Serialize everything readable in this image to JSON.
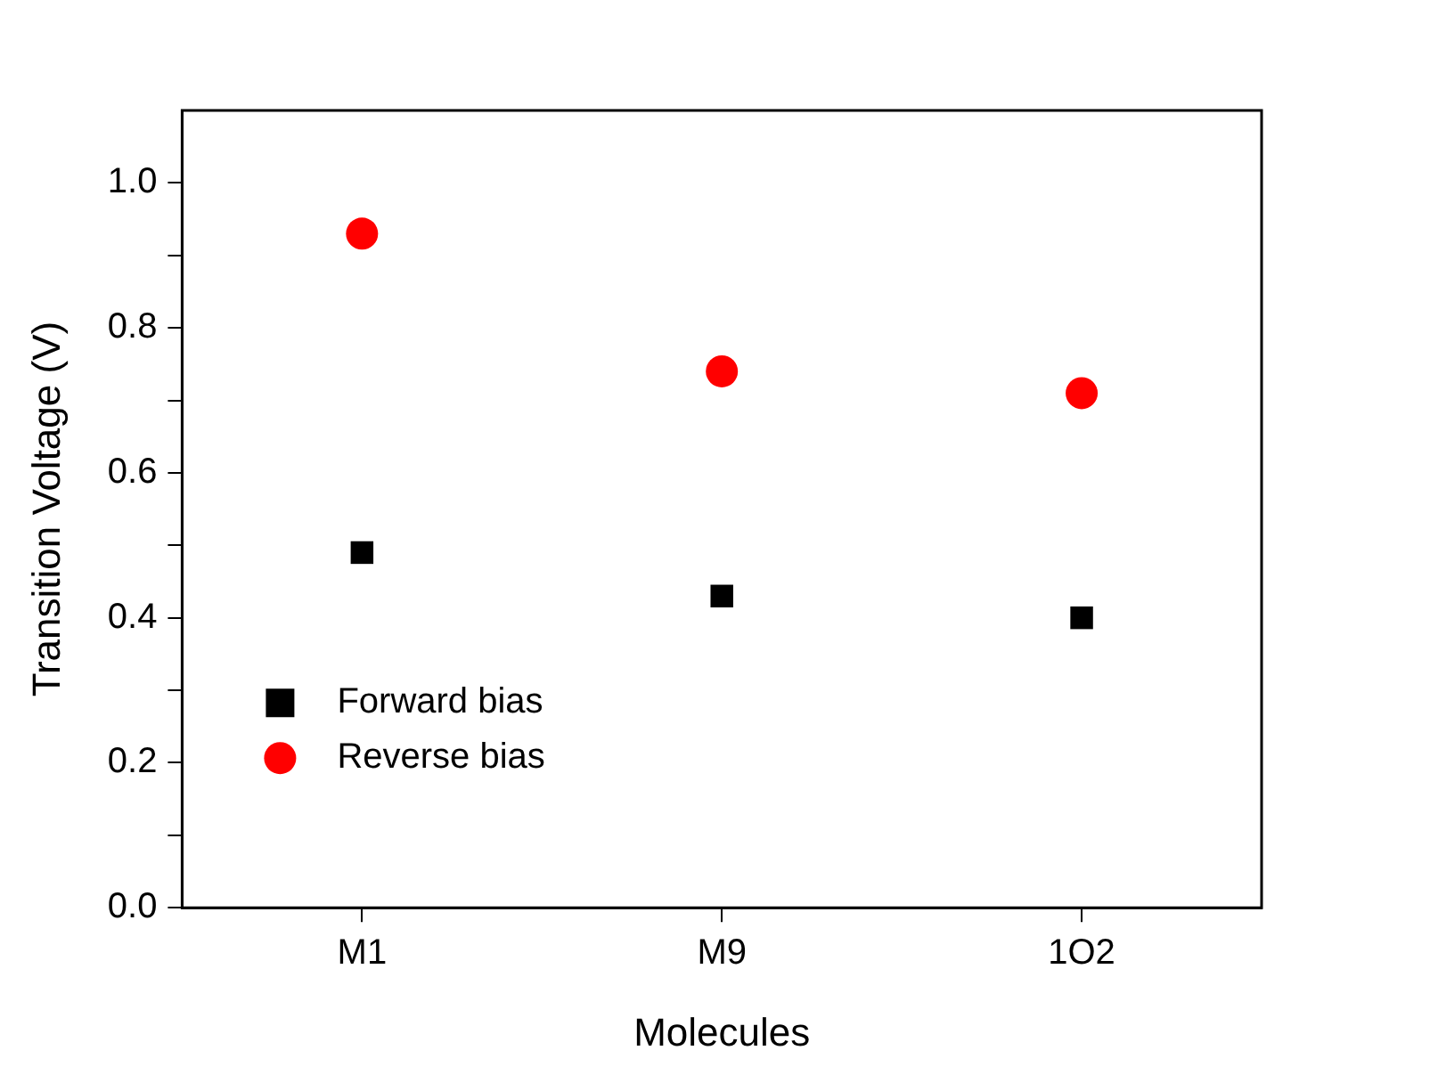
{
  "chart_data": {
    "type": "scatter",
    "xlabel": "Molecules",
    "ylabel": "Transition Voltage (V)",
    "categories": [
      "M1",
      "M9",
      "1O2"
    ],
    "series": [
      {
        "name": "Forward bias",
        "color": "#000000",
        "marker": "square",
        "values": [
          0.49,
          0.43,
          0.4
        ]
      },
      {
        "name": "Reverse bias",
        "color": "#ff0000",
        "marker": "circle",
        "values": [
          0.93,
          0.74,
          0.71
        ]
      }
    ],
    "ylim": [
      0,
      1.1
    ],
    "yticks": [
      {
        "value": 0,
        "label": "0.0"
      },
      {
        "value": 0.1,
        "label": null
      },
      {
        "value": 0.2,
        "label": "0.2"
      },
      {
        "value": 0.3,
        "label": null
      },
      {
        "value": 0.4,
        "label": "0.4"
      },
      {
        "value": 0.5,
        "label": null
      },
      {
        "value": 0.6,
        "label": "0.6"
      },
      {
        "value": 0.7,
        "label": null
      },
      {
        "value": 0.8,
        "label": "0.8"
      },
      {
        "value": 0.9,
        "label": null
      },
      {
        "value": 1,
        "label": "1.0"
      }
    ],
    "grid": false,
    "legend": "bottom left"
  }
}
